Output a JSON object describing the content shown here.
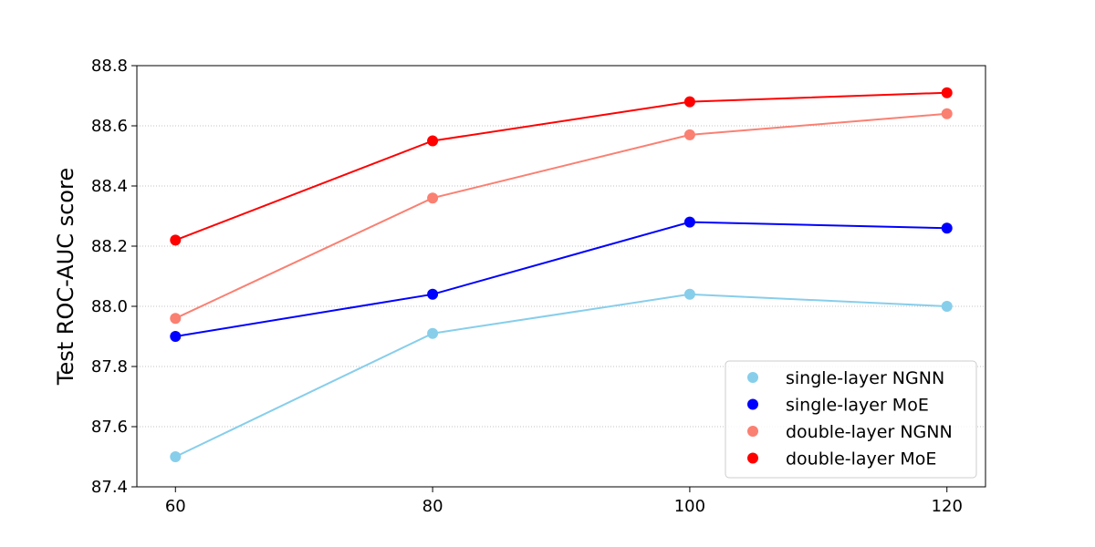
{
  "chart_data": {
    "type": "line",
    "title": "",
    "xlabel": "",
    "ylabel": "Test ROC-AUC score",
    "x": [
      60,
      80,
      100,
      120
    ],
    "xticks": [
      "60",
      "80",
      "100",
      "120"
    ],
    "xlim": [
      57,
      123
    ],
    "ylim": [
      87.4,
      88.8
    ],
    "yticks": [
      "87.4",
      "87.6",
      "87.8",
      "88.0",
      "88.2",
      "88.4",
      "88.6",
      "88.8"
    ],
    "grid": "horizontal-dotted",
    "legend_position": "lower-right",
    "series": [
      {
        "name": "single-layer NGNN",
        "color": "#87CEEB",
        "values": [
          87.5,
          87.91,
          88.04,
          88.0
        ]
      },
      {
        "name": "single-layer MoE",
        "color": "#0000FF",
        "values": [
          87.9,
          88.04,
          88.28,
          88.26
        ]
      },
      {
        "name": "double-layer NGNN",
        "color": "#FA8072",
        "values": [
          87.96,
          88.36,
          88.57,
          88.64
        ]
      },
      {
        "name": "double-layer MoE",
        "color": "#FF0000",
        "values": [
          88.22,
          88.55,
          88.68,
          88.71
        ]
      }
    ]
  }
}
